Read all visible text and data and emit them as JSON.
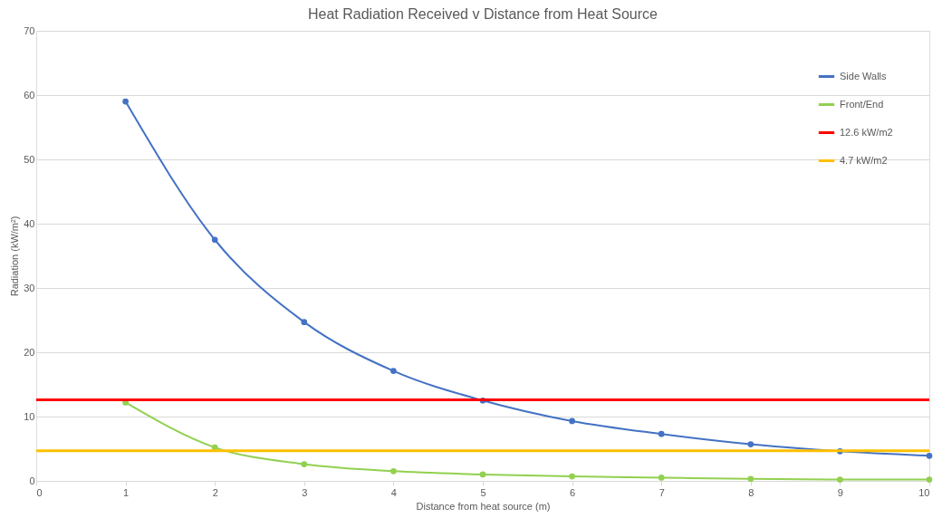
{
  "chart_data": {
    "type": "line",
    "title": "Heat Radiation Received v Distance from Heat Source",
    "xlabel": "Distance from heat source (m)",
    "ylabel": "Radiation (kW/m²)",
    "x": [
      1,
      2,
      3,
      4,
      5,
      6,
      7,
      8,
      9,
      10
    ],
    "series": [
      {
        "name": "Side Walls",
        "color": "#4472c4",
        "values": [
          59.0,
          37.5,
          24.7,
          17.1,
          12.5,
          9.3,
          7.3,
          5.7,
          4.6,
          3.9
        ]
      },
      {
        "name": "Front/End",
        "color": "#92d050",
        "values": [
          12.2,
          5.2,
          2.6,
          1.5,
          1.0,
          0.7,
          0.5,
          0.3,
          0.2,
          0.2
        ]
      }
    ],
    "ref_lines": [
      {
        "axis": "y",
        "value": 12.6,
        "label": "12.6 kW/m2",
        "color": "#ff0000"
      },
      {
        "axis": "y",
        "value": 4.7,
        "label": "4.7 kW/m2",
        "color": "#ffc000"
      }
    ],
    "xlim": [
      0,
      10
    ],
    "xticks": [
      0,
      1,
      2,
      3,
      4,
      5,
      6,
      7,
      8,
      9,
      10
    ],
    "ylim": [
      0,
      70
    ],
    "yticks": [
      0,
      10,
      20,
      30,
      40,
      50,
      60,
      70
    ],
    "grid": "y",
    "legend": "top right",
    "marker": "circle",
    "line_style": "solid"
  }
}
